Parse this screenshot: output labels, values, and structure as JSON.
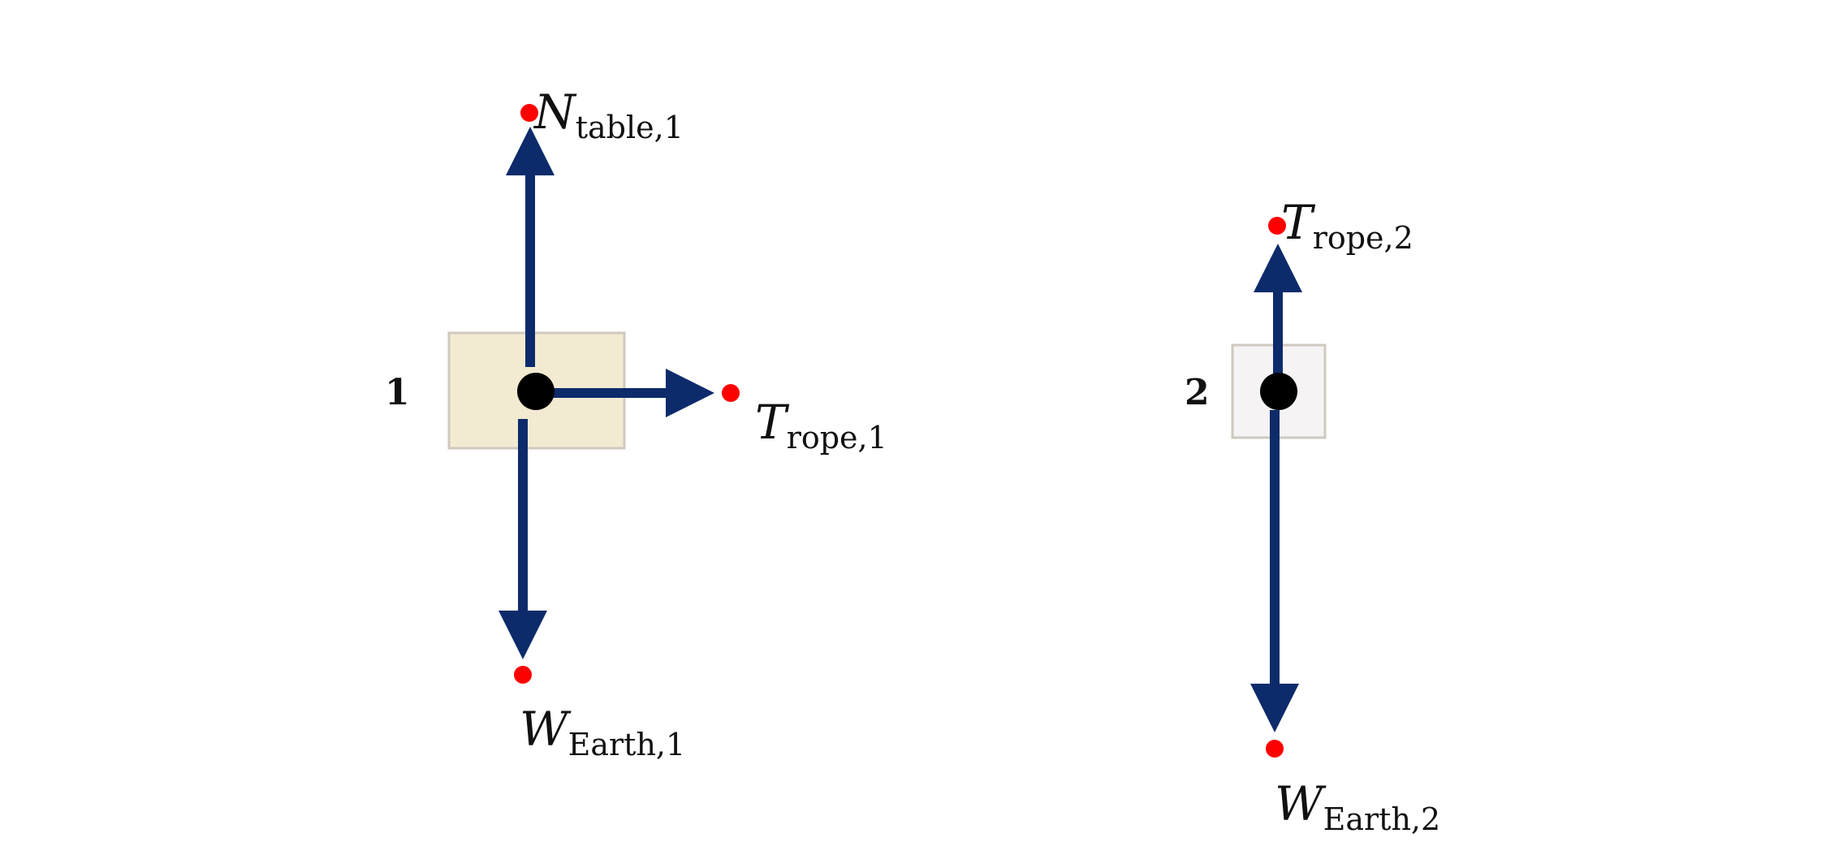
{
  "colors": {
    "arrow": "#0d2b6b",
    "tip_dot": "#ff0000",
    "center_dot": "#000000",
    "block1_fill": "#f2ebd1",
    "block2_fill": "#f5f3f3",
    "block_stroke": "#cfc9bf"
  },
  "blocks": [
    {
      "label": "1",
      "forces": [
        {
          "symbol": "N",
          "subscript": "table,1",
          "direction": "up"
        },
        {
          "symbol": "T",
          "subscript": "rope,1",
          "direction": "right"
        },
        {
          "symbol": "W",
          "subscript": "Earth,1",
          "direction": "down"
        }
      ]
    },
    {
      "label": "2",
      "forces": [
        {
          "symbol": "T",
          "subscript": "rope,2",
          "direction": "up"
        },
        {
          "symbol": "W",
          "subscript": "Earth,2",
          "direction": "down"
        }
      ]
    }
  ]
}
